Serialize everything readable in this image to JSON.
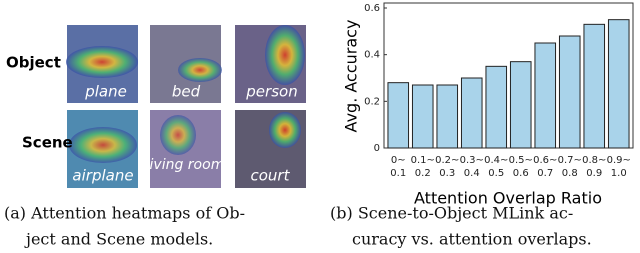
{
  "panel_a": {
    "row_labels": [
      "Object",
      "Scene"
    ],
    "image_labels": [
      [
        "plane",
        "bed",
        "person"
      ],
      [
        "airplane",
        "living room",
        "court"
      ]
    ],
    "caption_lines": [
      "(a) Attention heatmaps of Ob-",
      "ject and Scene models."
    ]
  },
  "chart_data": {
    "type": "bar",
    "ylabel": "Avg. Accuracy",
    "xlabel": "Attention Overlap Ratio",
    "categories": [
      [
        "0~",
        "0.1"
      ],
      [
        "0.1~",
        "0.2"
      ],
      [
        "0.2~",
        "0.3"
      ],
      [
        "0.3~",
        "0.4"
      ],
      [
        "0.4~",
        "0.5"
      ],
      [
        "0.5~",
        "0.6"
      ],
      [
        "0.6~",
        "0.7"
      ],
      [
        "0.7~",
        "0.8"
      ],
      [
        "0.8~",
        "0.9"
      ],
      [
        "0.9~",
        "1.0"
      ]
    ],
    "values": [
      0.28,
      0.27,
      0.27,
      0.3,
      0.35,
      0.37,
      0.45,
      0.48,
      0.53,
      0.55
    ],
    "color": "#a9d3ea",
    "ylim": [
      0,
      0.6
    ],
    "yticks": [
      0,
      0.2,
      0.4,
      0.6
    ],
    "grid": false,
    "caption_lines": [
      "(b) Scene-to-Object MLink ac-",
      "curacy vs. attention overlaps."
    ]
  }
}
